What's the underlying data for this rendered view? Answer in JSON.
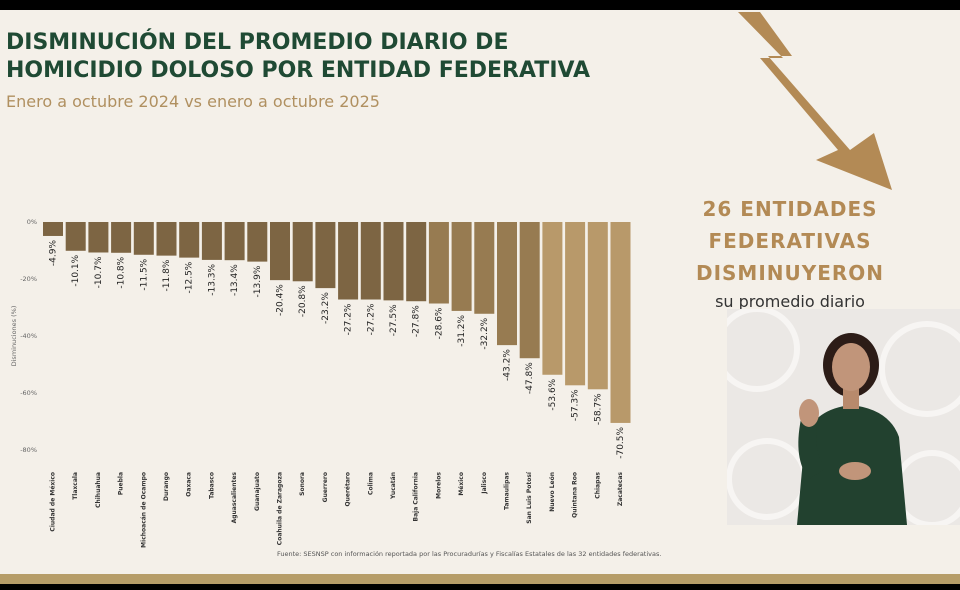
{
  "header": {
    "title_line1": "DISMINUCIÓN DEL PROMEDIO DIARIO DE",
    "title_line2": "HOMICIDIO DOLOSO POR ENTIDAD FEDERATIVA",
    "subtitle": "Enero a octubre 2024 vs enero a octubre 2025"
  },
  "chart_data": {
    "type": "bar",
    "title": "DISMINUCIÓN DEL PROMEDIO DIARIO DE HOMICIDIO DOLOSO POR ENTIDAD FEDERATIVA",
    "subtitle": "Enero a octubre 2024 vs enero a octubre 2025",
    "xlabel": "",
    "ylabel": "Disminuciones (%)",
    "ylim": [
      -80,
      0
    ],
    "yticks": [
      0,
      -20,
      -40,
      -60,
      -80
    ],
    "ytick_labels": [
      "0%",
      "-20%",
      "-40%",
      "-60%",
      "-80%"
    ],
    "grid": false,
    "categories": [
      "Ciudad de México",
      "Tlaxcala",
      "Chihuahua",
      "Puebla",
      "Michoacán de Ocampo",
      "Durango",
      "Oaxaca",
      "Tabasco",
      "Aguascalientes",
      "Guanajuato",
      "Coahuila de Zaragoza",
      "Sonora",
      "Guerrero",
      "Querétaro",
      "Colima",
      "Yucatán",
      "Baja California",
      "Morelos",
      "México",
      "Jalisco",
      "Tamaulipas",
      "San Luis Potosí",
      "Nuevo León",
      "Quintana Roo",
      "Chiapas",
      "Zacatecas"
    ],
    "values": [
      -4.9,
      -10.1,
      -10.7,
      -10.8,
      -11.5,
      -11.8,
      -12.5,
      -13.3,
      -13.4,
      -13.9,
      -20.4,
      -20.8,
      -23.2,
      -27.2,
      -27.2,
      -27.5,
      -27.8,
      -28.6,
      -31.2,
      -32.2,
      -43.2,
      -47.8,
      -53.6,
      -57.3,
      -58.7,
      -70.5
    ],
    "labels": [
      "-4.9%",
      "-10.1%",
      "-10.7%",
      "-10.8%",
      "-11.5%",
      "-11.8%",
      "-12.5%",
      "-13.3%",
      "-13.4%",
      "-13.9%",
      "-20.4%",
      "-20.8%",
      "-23.2%",
      "-27.2%",
      "-27.2%",
      "-27.5%",
      "-27.8%",
      "-28.6%",
      "-31.2%",
      "-32.2%",
      "-43.2%",
      "-47.8%",
      "-53.6%",
      "-57.3%",
      "-58.7%",
      "-70.5%"
    ],
    "colors": {
      "dark": "#7d6543",
      "mid": "#977b51",
      "light": "#b8996a"
    }
  },
  "source": "Fuente: SESNSP con información reportada por las Procuradurías y Fiscalías Estatales de las 32 entidades federativas.",
  "callout": {
    "line1": "26 ENTIDADES",
    "line2": "FEDERATIVAS",
    "line3": "DISMINUYERON",
    "subtitle": "su promedio diario"
  },
  "theme": {
    "green": "#1f4a34",
    "gold": "#b38a55",
    "band": "#b69d68"
  }
}
